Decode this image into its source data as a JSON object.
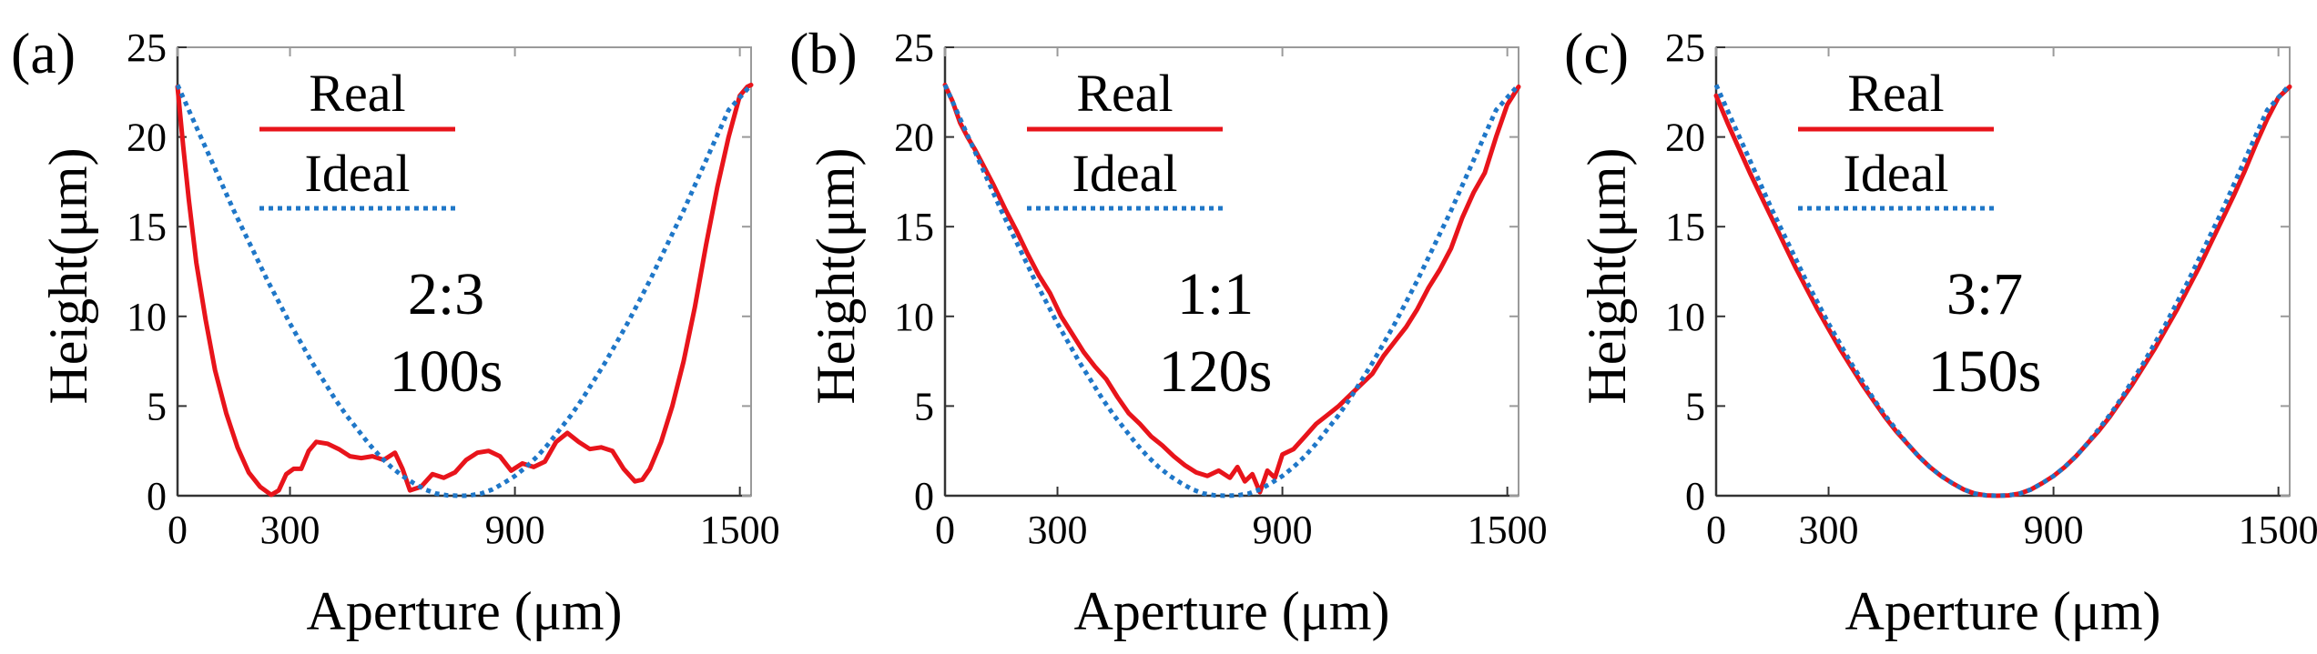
{
  "figure": {
    "legend": {
      "real": "Real",
      "ideal": "Ideal"
    },
    "colors": {
      "real": "#e8141b",
      "ideal": "#1f77c8",
      "axis": "#000000"
    }
  },
  "chart_data": [
    {
      "type": "line",
      "panel": "(a)",
      "xlabel": "Aperture (μm)",
      "ylabel": "Height(μm)",
      "xlim": [
        0,
        1530
      ],
      "ylim": [
        0,
        25
      ],
      "xticks": [
        0,
        300,
        900,
        1500
      ],
      "yticks": [
        0,
        5,
        10,
        15,
        20,
        25
      ],
      "annotation": [
        "2:3",
        "100s"
      ],
      "series": [
        {
          "name": "Real",
          "x": [
            0,
            15,
            30,
            50,
            75,
            100,
            130,
            160,
            190,
            220,
            250,
            270,
            290,
            310,
            330,
            350,
            370,
            400,
            430,
            460,
            490,
            520,
            550,
            580,
            600,
            620,
            650,
            680,
            710,
            740,
            770,
            800,
            830,
            860,
            890,
            920,
            950,
            980,
            1010,
            1040,
            1070,
            1100,
            1130,
            1160,
            1190,
            1220,
            1240,
            1260,
            1290,
            1320,
            1350,
            1380,
            1410,
            1440,
            1470,
            1500,
            1520,
            1530
          ],
          "values": [
            22.8,
            19.5,
            16.5,
            13.0,
            9.8,
            7.0,
            4.6,
            2.7,
            1.3,
            0.5,
            0.05,
            0.3,
            1.2,
            1.5,
            1.5,
            2.5,
            3.0,
            2.9,
            2.6,
            2.2,
            2.1,
            2.2,
            2.0,
            2.4,
            1.5,
            0.3,
            0.5,
            1.2,
            1.0,
            1.3,
            2.0,
            2.4,
            2.5,
            2.2,
            1.4,
            1.8,
            1.6,
            1.9,
            3.0,
            3.5,
            3.0,
            2.6,
            2.7,
            2.5,
            1.5,
            0.8,
            0.9,
            1.5,
            3.0,
            5.0,
            7.5,
            10.5,
            14.0,
            17.2,
            20.0,
            22.3,
            22.8,
            22.9
          ]
        },
        {
          "name": "Ideal",
          "x": [
            0,
            30,
            60,
            90,
            120,
            150,
            180,
            210,
            240,
            270,
            300,
            330,
            360,
            390,
            420,
            450,
            480,
            510,
            540,
            570,
            600,
            630,
            660,
            690,
            720,
            750,
            765,
            780,
            810,
            840,
            870,
            900,
            930,
            960,
            990,
            1020,
            1050,
            1080,
            1110,
            1140,
            1170,
            1200,
            1230,
            1260,
            1290,
            1320,
            1350,
            1380,
            1410,
            1440,
            1470,
            1500,
            1530
          ],
          "values": [
            22.9,
            21.5,
            20.1,
            18.7,
            17.3,
            15.9,
            14.6,
            13.3,
            12.0,
            10.8,
            9.6,
            8.5,
            7.4,
            6.4,
            5.4,
            4.5,
            3.7,
            2.9,
            2.2,
            1.6,
            1.1,
            0.7,
            0.35,
            0.12,
            0.02,
            0.0,
            0.0,
            0.02,
            0.12,
            0.35,
            0.7,
            1.1,
            1.6,
            2.2,
            2.9,
            3.7,
            4.5,
            5.4,
            6.4,
            7.4,
            8.5,
            9.6,
            10.8,
            12.0,
            13.3,
            14.6,
            15.9,
            17.3,
            18.7,
            20.1,
            21.5,
            22.2,
            22.9
          ]
        }
      ]
    },
    {
      "type": "line",
      "panel": "(b)",
      "xlabel": "Aperture (μm)",
      "ylabel": "Height(μm)",
      "xlim": [
        0,
        1530
      ],
      "ylim": [
        0,
        25
      ],
      "xticks": [
        0,
        300,
        900,
        1500
      ],
      "yticks": [
        0,
        5,
        10,
        15,
        20,
        25
      ],
      "annotation": [
        "1:1",
        "120s"
      ],
      "series": [
        {
          "name": "Real",
          "x": [
            0,
            20,
            40,
            60,
            80,
            100,
            130,
            160,
            190,
            220,
            250,
            280,
            310,
            340,
            370,
            400,
            430,
            460,
            490,
            520,
            550,
            580,
            610,
            640,
            670,
            700,
            730,
            760,
            780,
            800,
            820,
            840,
            860,
            880,
            900,
            930,
            960,
            990,
            1020,
            1050,
            1080,
            1110,
            1140,
            1170,
            1200,
            1230,
            1260,
            1290,
            1320,
            1350,
            1380,
            1410,
            1440,
            1470,
            1500,
            1530
          ],
          "values": [
            22.9,
            22.0,
            20.8,
            20.0,
            19.3,
            18.5,
            17.3,
            16.0,
            14.8,
            13.5,
            12.3,
            11.3,
            10.0,
            9.0,
            8.0,
            7.2,
            6.5,
            5.5,
            4.6,
            4.0,
            3.3,
            2.8,
            2.2,
            1.7,
            1.3,
            1.1,
            1.4,
            1.0,
            1.6,
            0.8,
            1.2,
            0.2,
            1.4,
            1.0,
            2.3,
            2.6,
            3.3,
            4.0,
            4.5,
            5.0,
            5.6,
            6.2,
            6.8,
            7.8,
            8.6,
            9.4,
            10.4,
            11.6,
            12.6,
            13.8,
            15.5,
            16.9,
            18.0,
            20.0,
            21.8,
            22.8
          ]
        },
        {
          "name": "Ideal",
          "x": [
            0,
            30,
            60,
            90,
            120,
            150,
            180,
            210,
            240,
            270,
            300,
            330,
            360,
            390,
            420,
            450,
            480,
            510,
            540,
            570,
            600,
            630,
            660,
            690,
            720,
            750,
            780,
            810,
            840,
            870,
            900,
            930,
            960,
            990,
            1020,
            1050,
            1080,
            1110,
            1140,
            1170,
            1200,
            1230,
            1260,
            1290,
            1320,
            1350,
            1380,
            1410,
            1440,
            1470,
            1500,
            1530
          ],
          "values": [
            22.9,
            21.5,
            20.1,
            18.7,
            17.3,
            15.9,
            14.6,
            13.3,
            12.0,
            10.8,
            9.6,
            8.5,
            7.4,
            6.4,
            5.4,
            4.5,
            3.7,
            2.9,
            2.2,
            1.6,
            1.1,
            0.7,
            0.35,
            0.12,
            0.02,
            0.0,
            0.02,
            0.12,
            0.35,
            0.7,
            1.1,
            1.6,
            2.2,
            2.9,
            3.7,
            4.5,
            5.4,
            6.4,
            7.4,
            8.5,
            9.6,
            10.8,
            12.0,
            13.3,
            14.6,
            15.9,
            17.3,
            18.7,
            20.1,
            21.5,
            22.2,
            22.9
          ]
        }
      ]
    },
    {
      "type": "line",
      "panel": "(c)",
      "xlabel": "Aperture (μm)",
      "ylabel": "Height(μm)",
      "xlim": [
        0,
        1530
      ],
      "ylim": [
        0,
        25
      ],
      "xticks": [
        0,
        300,
        900,
        1500
      ],
      "yticks": [
        0,
        5,
        10,
        15,
        20,
        25
      ],
      "annotation": [
        "3:7",
        "150s"
      ],
      "series": [
        {
          "name": "Real",
          "x": [
            0,
            30,
            60,
            90,
            120,
            150,
            180,
            210,
            240,
            270,
            300,
            330,
            360,
            390,
            420,
            450,
            480,
            510,
            540,
            570,
            600,
            630,
            660,
            690,
            720,
            750,
            780,
            810,
            840,
            870,
            900,
            930,
            960,
            990,
            1020,
            1050,
            1080,
            1110,
            1140,
            1170,
            1200,
            1230,
            1260,
            1290,
            1320,
            1350,
            1380,
            1410,
            1440,
            1470,
            1500,
            1530
          ],
          "values": [
            22.3,
            20.8,
            19.4,
            18.0,
            16.7,
            15.4,
            14.1,
            12.8,
            11.6,
            10.4,
            9.3,
            8.2,
            7.2,
            6.2,
            5.3,
            4.4,
            3.6,
            2.9,
            2.2,
            1.6,
            1.1,
            0.7,
            0.35,
            0.12,
            0.02,
            0.0,
            0.02,
            0.12,
            0.35,
            0.7,
            1.1,
            1.6,
            2.2,
            2.9,
            3.6,
            4.4,
            5.3,
            6.2,
            7.2,
            8.2,
            9.3,
            10.4,
            11.6,
            12.8,
            14.1,
            15.4,
            16.7,
            18.1,
            19.6,
            21.0,
            22.2,
            22.8
          ]
        },
        {
          "name": "Ideal",
          "x": [
            0,
            30,
            60,
            90,
            120,
            150,
            180,
            210,
            240,
            270,
            300,
            330,
            360,
            390,
            420,
            450,
            480,
            510,
            540,
            570,
            600,
            630,
            660,
            690,
            720,
            750,
            780,
            810,
            840,
            870,
            900,
            930,
            960,
            990,
            1020,
            1050,
            1080,
            1110,
            1140,
            1170,
            1200,
            1230,
            1260,
            1290,
            1320,
            1350,
            1380,
            1410,
            1440,
            1470,
            1500,
            1530
          ],
          "values": [
            22.9,
            21.5,
            20.1,
            18.7,
            17.3,
            15.9,
            14.6,
            13.3,
            12.0,
            10.8,
            9.6,
            8.5,
            7.4,
            6.4,
            5.4,
            4.5,
            3.7,
            2.9,
            2.2,
            1.6,
            1.1,
            0.7,
            0.35,
            0.12,
            0.02,
            0.0,
            0.02,
            0.12,
            0.35,
            0.7,
            1.1,
            1.6,
            2.2,
            2.9,
            3.7,
            4.5,
            5.4,
            6.4,
            7.4,
            8.5,
            9.6,
            10.8,
            12.0,
            13.3,
            14.6,
            15.9,
            17.3,
            18.7,
            20.1,
            21.5,
            22.2,
            22.9
          ]
        }
      ]
    }
  ]
}
